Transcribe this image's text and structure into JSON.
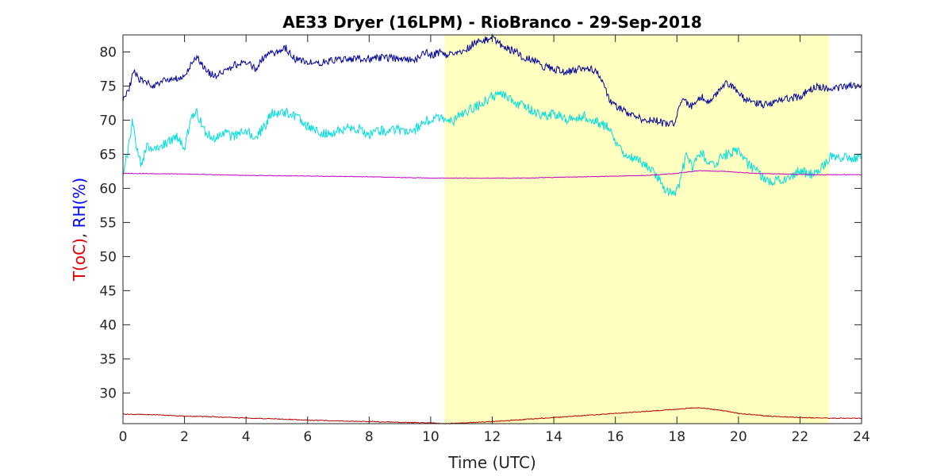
{
  "chart_data": {
    "type": "line",
    "title": "AE33 Dryer (16LPM)  - RioBranco - 29-Sep-2018",
    "xlabel": "Time (UTC)",
    "ylabel_parts": [
      {
        "text": "T(oC)",
        "color": "#e00000"
      },
      {
        "text": ", ",
        "color": "#262626"
      },
      {
        "text": "RH(%)",
        "color": "#0000ff"
      }
    ],
    "xlim": [
      0,
      24
    ],
    "ylim": [
      25.5,
      82.5
    ],
    "xticks": [
      0,
      2,
      4,
      6,
      8,
      10,
      12,
      14,
      16,
      18,
      20,
      22,
      24
    ],
    "yticks": [
      30,
      35,
      40,
      45,
      50,
      55,
      60,
      65,
      70,
      75,
      80
    ],
    "grid": false,
    "legend": "none",
    "shaded_region": {
      "x": [
        10.45,
        22.95
      ],
      "color": "#ffffc0"
    },
    "series": [
      {
        "color": "#00009a",
        "x": [
          0.0,
          0.2,
          0.35,
          0.5,
          0.8,
          1.0,
          1.3,
          1.6,
          2.0,
          2.2,
          2.4,
          2.6,
          2.8,
          3.0,
          3.3,
          3.6,
          4.0,
          4.3,
          4.5,
          4.8,
          5.0,
          5.3,
          5.6,
          6.0,
          6.5,
          7.0,
          7.5,
          8.0,
          8.5,
          9.0,
          9.5,
          9.8,
          10.0,
          10.3,
          10.5,
          11.0,
          11.5,
          12.0,
          12.3,
          12.5,
          12.8,
          13.0,
          13.3,
          13.6,
          14.0,
          14.4,
          14.8,
          15.2,
          15.5,
          15.8,
          16.0,
          16.3,
          16.6,
          17.0,
          17.3,
          17.6,
          17.9,
          18.2,
          18.5,
          18.8,
          19.0,
          19.3,
          19.6,
          20.0,
          20.2,
          20.5,
          20.8,
          21.0,
          21.5,
          22.0,
          22.5,
          23.0,
          23.5,
          24.0
        ],
        "y": [
          73.0,
          74.5,
          77.5,
          76.0,
          75.5,
          75.0,
          75.8,
          76.0,
          76.5,
          78.0,
          79.5,
          78.0,
          77.0,
          76.5,
          77.0,
          78.0,
          78.5,
          77.5,
          79.0,
          79.8,
          80.0,
          80.5,
          79.0,
          78.5,
          78.5,
          78.8,
          79.0,
          79.0,
          79.2,
          79.0,
          78.8,
          80.0,
          79.5,
          80.0,
          79.5,
          80.0,
          81.5,
          82.0,
          81.0,
          80.5,
          80.0,
          79.0,
          79.0,
          78.0,
          77.5,
          77.0,
          77.5,
          77.5,
          76.5,
          73.0,
          72.0,
          71.5,
          70.5,
          70.0,
          70.0,
          69.5,
          69.5,
          73.0,
          72.0,
          73.5,
          72.5,
          74.0,
          75.5,
          74.0,
          73.0,
          72.5,
          72.3,
          72.5,
          73.0,
          73.5,
          75.0,
          74.5,
          75.0,
          75.3
        ]
      },
      {
        "color": "#00dede",
        "x": [
          0.0,
          0.15,
          0.3,
          0.45,
          0.6,
          0.8,
          1.0,
          1.2,
          1.5,
          1.8,
          2.0,
          2.2,
          2.4,
          2.7,
          3.0,
          3.3,
          3.6,
          4.0,
          4.3,
          4.6,
          4.8,
          5.0,
          5.3,
          5.6,
          5.9,
          6.2,
          6.6,
          7.0,
          7.5,
          8.0,
          8.5,
          9.0,
          9.5,
          9.8,
          10.0,
          10.3,
          10.5,
          10.8,
          11.0,
          11.5,
          12.0,
          12.3,
          12.6,
          13.0,
          13.3,
          13.6,
          14.0,
          14.5,
          15.0,
          15.5,
          15.8,
          16.0,
          16.3,
          16.6,
          17.0,
          17.3,
          17.6,
          17.9,
          18.1,
          18.3,
          18.5,
          18.8,
          19.0,
          19.3,
          19.6,
          20.0,
          20.3,
          20.6,
          21.0,
          21.5,
          22.0,
          22.5,
          23.0,
          23.5,
          24.0
        ],
        "y": [
          62.5,
          65.0,
          70.0,
          66.0,
          63.5,
          66.5,
          65.5,
          66.0,
          67.0,
          67.5,
          66.0,
          70.0,
          71.0,
          68.0,
          67.5,
          68.0,
          67.5,
          68.5,
          67.5,
          69.0,
          71.0,
          71.0,
          71.2,
          70.5,
          69.5,
          68.5,
          68.0,
          68.5,
          69.0,
          68.0,
          68.5,
          68.5,
          68.5,
          70.0,
          70.0,
          70.5,
          69.5,
          70.0,
          71.0,
          72.0,
          73.5,
          74.0,
          73.0,
          72.0,
          71.5,
          70.5,
          71.0,
          70.0,
          70.5,
          69.5,
          69.0,
          66.5,
          65.0,
          64.5,
          63.5,
          62.0,
          60.0,
          59.0,
          61.0,
          65.0,
          63.0,
          65.5,
          63.0,
          64.0,
          65.0,
          65.5,
          63.5,
          62.5,
          61.0,
          61.5,
          62.5,
          62.0,
          64.5,
          64.5,
          64.5
        ]
      },
      {
        "color": "#c000c0",
        "x": [
          0,
          2,
          4,
          6,
          8,
          10,
          11,
          12,
          13,
          14,
          15,
          16,
          17,
          18,
          18.7,
          19.5,
          20.5,
          21.5,
          22.5,
          24
        ],
        "y": [
          62.2,
          62.1,
          61.9,
          61.8,
          61.7,
          61.5,
          61.5,
          61.5,
          61.5,
          61.6,
          61.7,
          61.8,
          61.9,
          62.2,
          62.6,
          62.5,
          62.2,
          62.1,
          62.0,
          62.0
        ]
      },
      {
        "color": "#b00000",
        "x": [
          0,
          1,
          2,
          3,
          4,
          5,
          6,
          7,
          8,
          9,
          10,
          10.5,
          11,
          12,
          13,
          14,
          15,
          16,
          17,
          18,
          18.5,
          18.8,
          19.5,
          20,
          21,
          22,
          23,
          24
        ],
        "y": [
          26.9,
          26.8,
          26.6,
          26.5,
          26.3,
          26.2,
          26.0,
          25.9,
          25.8,
          25.7,
          25.6,
          25.5,
          25.6,
          25.8,
          26.1,
          26.4,
          26.7,
          27.0,
          27.3,
          27.6,
          27.8,
          27.8,
          27.4,
          27.0,
          26.6,
          26.4,
          26.3,
          26.3
        ]
      }
    ]
  }
}
